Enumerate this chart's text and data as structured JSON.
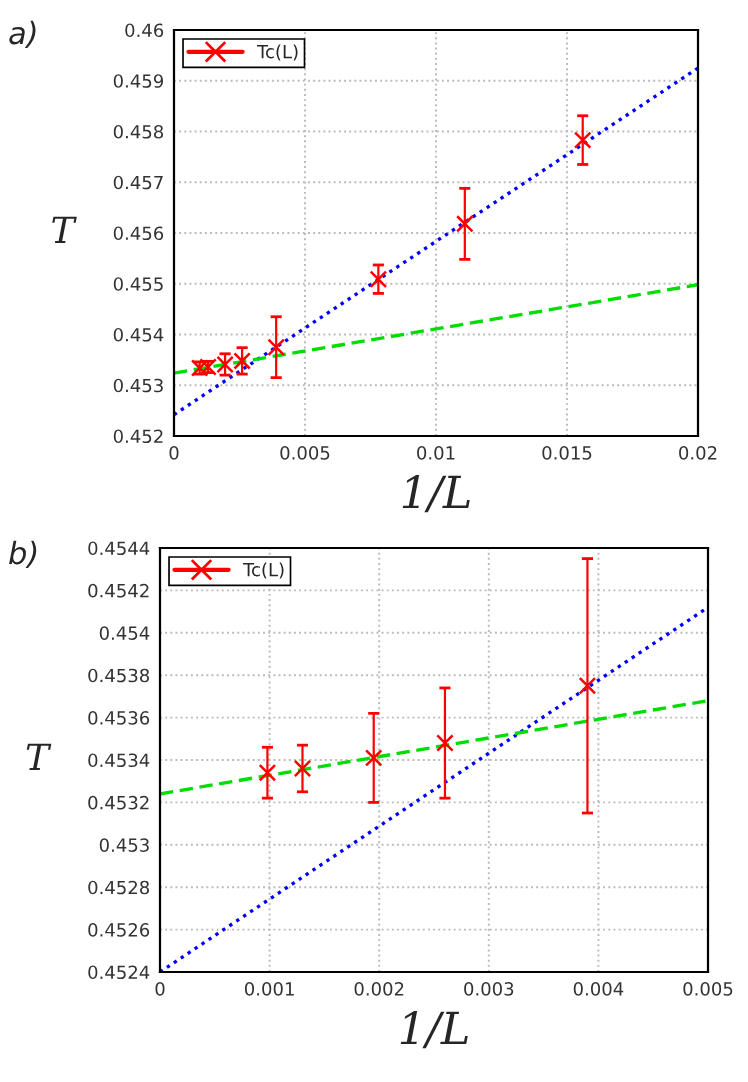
{
  "chart_data": [
    {
      "type": "scatter",
      "xlabel": "1/L",
      "ylabel": "T",
      "annotations": [
        "a)"
      ],
      "xlim": [
        0,
        0.02
      ],
      "ylim": [
        0.452,
        0.46
      ],
      "xticks": [
        0,
        0.005,
        0.01,
        0.015,
        0.02
      ],
      "yticks": [
        0.452,
        0.453,
        0.454,
        0.455,
        0.456,
        0.457,
        0.458,
        0.459,
        0.46
      ],
      "grid": true,
      "legend": "top left",
      "series": [
        {
          "name": "Tc(L)",
          "type": "scatter",
          "marker": "cross",
          "color": "#ff0000",
          "x": [
            0.00098,
            0.0013,
            0.00195,
            0.0026,
            0.0039,
            0.0078,
            0.0111,
            0.0156
          ],
          "values": [
            0.45334,
            0.45336,
            0.45341,
            0.45348,
            0.45375,
            0.45509,
            0.45618,
            0.45783
          ],
          "errors": [
            0.00012,
            0.00011,
            0.00021,
            0.00026,
            0.0006,
            0.00028,
            0.0007,
            0.00048
          ]
        },
        {
          "type": "line",
          "line_style": "dotted",
          "color": "#0000ff",
          "x": [
            0,
            0.02
          ],
          "values": [
            0.45242,
            0.45925
          ]
        },
        {
          "type": "line",
          "line_style": "dashed",
          "color": "#00dd00",
          "x": [
            0,
            0.02
          ],
          "values": [
            0.45324,
            0.45498
          ]
        }
      ]
    },
    {
      "type": "scatter",
      "xlabel": "1/L",
      "ylabel": "T",
      "annotations": [
        "b)"
      ],
      "xlim": [
        0,
        0.005
      ],
      "ylim": [
        0.4524,
        0.4544
      ],
      "xticks": [
        0,
        0.001,
        0.002,
        0.003,
        0.004,
        0.005
      ],
      "yticks": [
        0.4524,
        0.4526,
        0.4528,
        0.453,
        0.4532,
        0.4534,
        0.4536,
        0.4538,
        0.454,
        0.4542,
        0.4544
      ],
      "grid": true,
      "legend": "top left",
      "series": [
        {
          "name": "Tc(L)",
          "type": "scatter",
          "marker": "cross",
          "color": "#ff0000",
          "x": [
            0.00098,
            0.0013,
            0.00195,
            0.0026,
            0.0039
          ],
          "values": [
            0.45334,
            0.45336,
            0.45341,
            0.45348,
            0.45375
          ],
          "errors": [
            0.00012,
            0.00011,
            0.00021,
            0.00026,
            0.0006
          ]
        },
        {
          "type": "line",
          "line_style": "dotted",
          "color": "#0000ff",
          "x": [
            0,
            0.005
          ],
          "values": [
            0.4524,
            0.45412
          ]
        },
        {
          "type": "line",
          "line_style": "dashed",
          "color": "#00dd00",
          "x": [
            0,
            0.005
          ],
          "values": [
            0.45324,
            0.45368
          ]
        }
      ]
    }
  ]
}
